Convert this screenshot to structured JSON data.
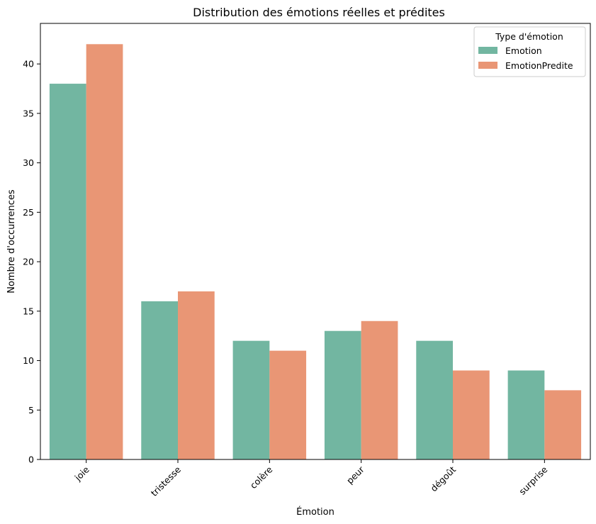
{
  "chart_data": {
    "type": "bar",
    "title": "Distribution des émotions réelles et prédites",
    "xlabel": "Émotion",
    "ylabel": "Nombre d'occurrences",
    "categories": [
      "joie",
      "tristesse",
      "colère",
      "peur",
      "dégoût",
      "surprise"
    ],
    "series": [
      {
        "name": "Emotion",
        "color": "#72b6a1",
        "values": [
          38,
          16,
          12,
          13,
          12,
          9
        ]
      },
      {
        "name": "EmotionPredite",
        "color": "#e99675",
        "values": [
          42,
          17,
          11,
          14,
          9,
          7
        ]
      }
    ],
    "ylim": [
      0,
      44.1
    ],
    "yticks": [
      0,
      5,
      10,
      15,
      20,
      25,
      30,
      35,
      40
    ],
    "grid": false,
    "legend": {
      "title": "Type d'émotion",
      "position": "top-right"
    }
  }
}
